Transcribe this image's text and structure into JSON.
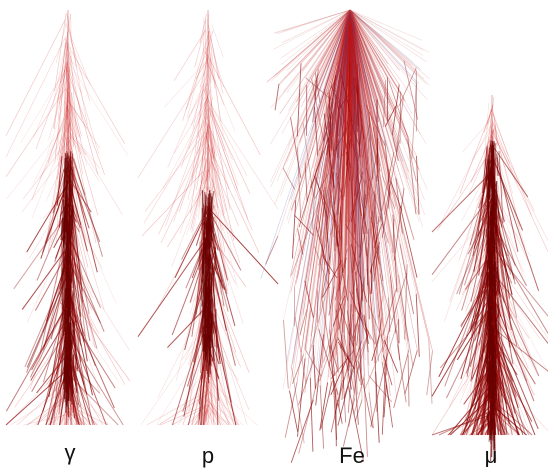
{
  "panels": [
    {
      "label": "γ"
    },
    {
      "label": "p"
    },
    {
      "label": "Fe"
    },
    {
      "label": "μ"
    }
  ]
}
